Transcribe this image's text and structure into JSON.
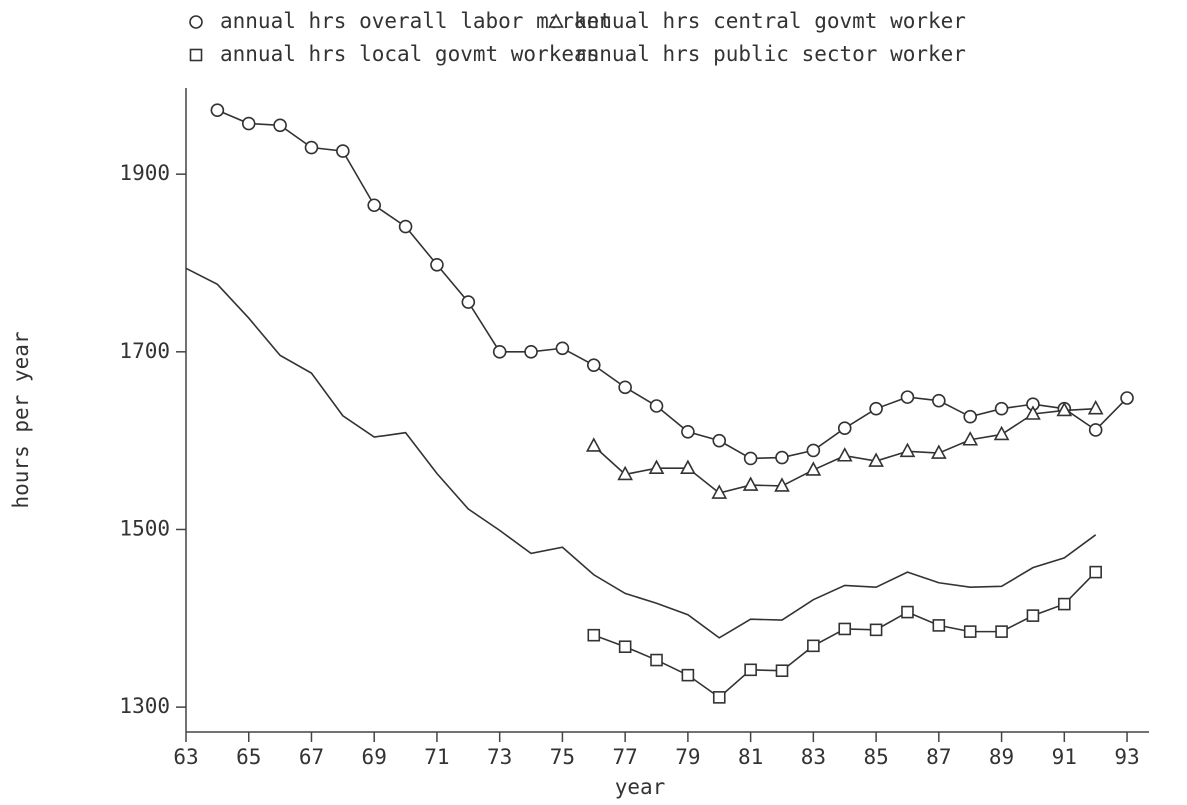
{
  "chart_data": {
    "type": "line",
    "x_label": "year",
    "y_label": "hours per year",
    "x": [
      63,
      64,
      65,
      66,
      67,
      68,
      69,
      70,
      71,
      72,
      73,
      74,
      75,
      76,
      77,
      78,
      79,
      80,
      81,
      82,
      83,
      84,
      85,
      86,
      87,
      88,
      89,
      90,
      91,
      92,
      93
    ],
    "series": [
      {
        "name": "annual hrs overall labor market",
        "color": "#333333",
        "marker": "circle",
        "values": [
          null,
          1972,
          1957,
          1955,
          1930,
          1926,
          1865,
          1841,
          1798,
          1756,
          1700,
          1700,
          1704,
          1685,
          1660,
          1639,
          1610,
          1600,
          1580,
          1581,
          1589,
          1614,
          1636,
          1649,
          1645,
          1627,
          1636,
          1641,
          1636,
          1612,
          1648
        ]
      },
      {
        "name": "annual hrs central govmt worker",
        "color": "#333333",
        "marker": "triangle",
        "values": [
          null,
          null,
          null,
          null,
          null,
          null,
          null,
          null,
          null,
          null,
          null,
          null,
          null,
          1594,
          1562,
          1569,
          1569,
          1541,
          1550,
          1549,
          1567,
          1583,
          1577,
          1588,
          1586,
          1601,
          1607,
          1630,
          1634,
          1636,
          null
        ]
      },
      {
        "name": "annual hrs local govmt workers",
        "color": "#333333",
        "marker": "square",
        "values": [
          null,
          null,
          null,
          null,
          null,
          null,
          null,
          null,
          null,
          null,
          null,
          null,
          null,
          1381,
          1368,
          1353,
          1336,
          1311,
          1342,
          1341,
          1369,
          1388,
          1387,
          1407,
          1392,
          1385,
          1385,
          1403,
          1416,
          1452,
          null
        ]
      },
      {
        "name": "annual hrs public sector worker",
        "color": "#333333",
        "marker": "none",
        "values": [
          1794,
          1776,
          1738,
          1696,
          1676,
          1628,
          1604,
          1609,
          1563,
          1523,
          1499,
          1473,
          1480,
          1449,
          1428,
          1417,
          1404,
          1378,
          1399,
          1398,
          1421,
          1437,
          1435,
          1452,
          1440,
          1435,
          1436,
          1457,
          1468,
          1494,
          null
        ]
      }
    ],
    "xlim": [
      63,
      93.7
    ],
    "ylim": [
      1272,
      1997
    ],
    "xticks": [
      63,
      65,
      67,
      69,
      71,
      73,
      75,
      77,
      79,
      81,
      83,
      85,
      87,
      89,
      91,
      93
    ],
    "yticks": [
      1300,
      1500,
      1700,
      1900
    ],
    "grid": false
  }
}
